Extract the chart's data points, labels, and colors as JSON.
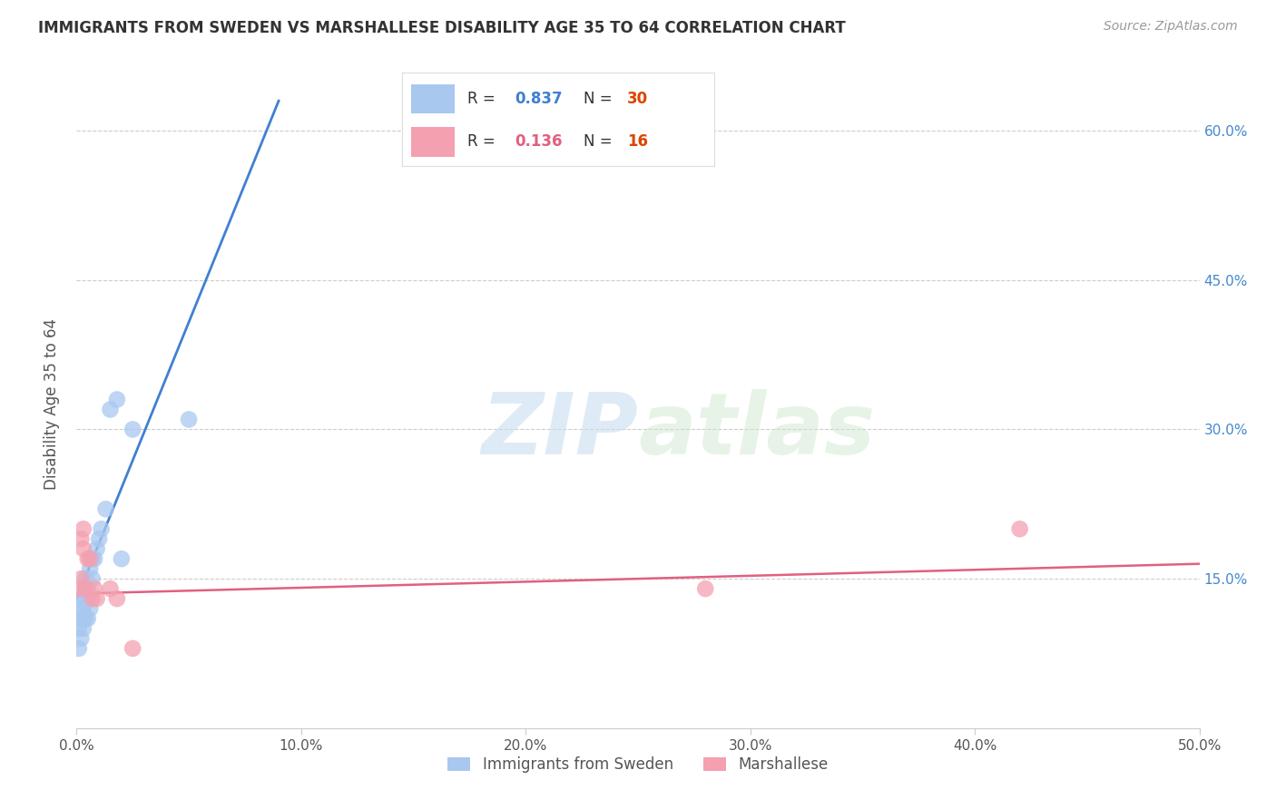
{
  "title": "IMMIGRANTS FROM SWEDEN VS MARSHALLESE DISABILITY AGE 35 TO 64 CORRELATION CHART",
  "source": "Source: ZipAtlas.com",
  "ylabel_label": "Disability Age 35 to 64",
  "legend_labels": [
    "Immigrants from Sweden",
    "Marshallese"
  ],
  "sweden_R": "0.837",
  "sweden_N": "30",
  "marshallese_R": "0.136",
  "marshallese_N": "16",
  "sweden_color": "#a8c8f0",
  "marshallese_color": "#f4a0b0",
  "sweden_line_color": "#4080d0",
  "marshallese_line_color": "#e06080",
  "watermark_zip": "ZIP",
  "watermark_atlas": "atlas",
  "xlim": [
    0.0,
    0.5
  ],
  "ylim": [
    0.0,
    0.65
  ],
  "x_ticks": [
    0.0,
    0.1,
    0.2,
    0.3,
    0.4,
    0.5
  ],
  "x_tick_labels": [
    "0.0%",
    "10.0%",
    "20.0%",
    "30.0%",
    "40.0%",
    "50.0%"
  ],
  "y_ticks": [
    0.15,
    0.3,
    0.45,
    0.6
  ],
  "y_tick_labels": [
    "15.0%",
    "30.0%",
    "45.0%",
    "60.0%"
  ],
  "sweden_x": [
    0.001,
    0.001,
    0.002,
    0.002,
    0.002,
    0.002,
    0.003,
    0.003,
    0.003,
    0.003,
    0.004,
    0.004,
    0.004,
    0.005,
    0.005,
    0.005,
    0.006,
    0.006,
    0.007,
    0.007,
    0.008,
    0.009,
    0.01,
    0.011,
    0.013,
    0.015,
    0.018,
    0.02,
    0.025,
    0.05
  ],
  "sweden_y": [
    0.1,
    0.08,
    0.09,
    0.11,
    0.12,
    0.13,
    0.1,
    0.11,
    0.12,
    0.13,
    0.11,
    0.14,
    0.15,
    0.11,
    0.13,
    0.14,
    0.12,
    0.16,
    0.15,
    0.17,
    0.17,
    0.18,
    0.19,
    0.2,
    0.22,
    0.32,
    0.33,
    0.17,
    0.3,
    0.31
  ],
  "marshallese_x": [
    0.001,
    0.002,
    0.002,
    0.003,
    0.003,
    0.004,
    0.005,
    0.006,
    0.007,
    0.008,
    0.009,
    0.015,
    0.018,
    0.025,
    0.28,
    0.42
  ],
  "marshallese_y": [
    0.14,
    0.15,
    0.19,
    0.18,
    0.2,
    0.14,
    0.17,
    0.17,
    0.13,
    0.14,
    0.13,
    0.14,
    0.13,
    0.08,
    0.14,
    0.2
  ],
  "sweden_line_x": [
    0.0,
    0.09
  ],
  "sweden_line_y": [
    0.13,
    0.63
  ],
  "marshallese_line_x": [
    0.0,
    0.5
  ],
  "marshallese_line_y": [
    0.135,
    0.165
  ]
}
